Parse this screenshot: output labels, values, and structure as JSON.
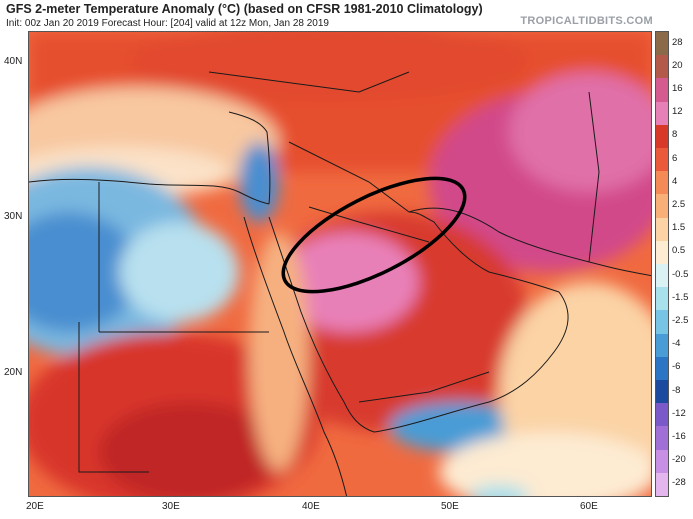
{
  "header": {
    "title": "GFS 2-meter Temperature Anomaly (°C) (based on CFSR 1981-2010 Climatology)",
    "subtitle": "Init: 00z Jan 20 2019   Forecast Hour: [204]   valid at 12z Mon, Jan 28 2019",
    "brand": "TROPICALTIDBITS.COM"
  },
  "map": {
    "lat_labels": [
      "40N",
      "30N",
      "20N"
    ],
    "lon_labels": [
      "20E",
      "30E",
      "40E",
      "50E",
      "60E"
    ],
    "highlight_shape": "black-ellipse"
  },
  "colorbar": {
    "labels": [
      "28",
      "20",
      "16",
      "12",
      "8",
      "6",
      "4",
      "2.5",
      "1.5",
      "0.5",
      "-0.5",
      "-1.5",
      "-2.5",
      "-4",
      "-6",
      "-8",
      "-12",
      "-16",
      "-20",
      "-28"
    ],
    "colors": [
      "#8a6a48",
      "#b35a4a",
      "#d45a90",
      "#e880b8",
      "#d83828",
      "#ea5a3a",
      "#f48a55",
      "#f8b078",
      "#fbd3a5",
      "#fdebd2",
      "#daf2f4",
      "#a8e0ec",
      "#78c4e4",
      "#4a9cd6",
      "#2c74c4",
      "#1c4a9e",
      "#7a5ac8",
      "#a070d6",
      "#c890e4",
      "#e4b6ee"
    ]
  }
}
